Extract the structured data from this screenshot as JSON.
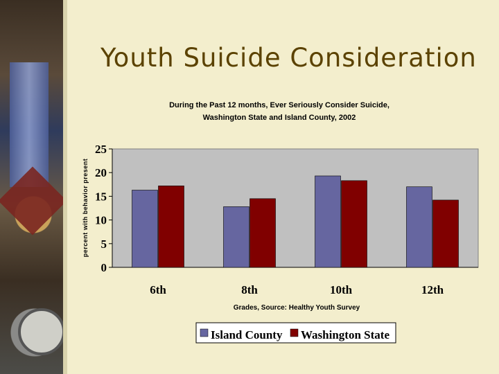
{
  "slide": {
    "title": "Youth Suicide Consideration"
  },
  "chart_data": {
    "type": "bar",
    "title": "During the Past 12 months, Ever Seriously Consider Suicide,",
    "subtitle": "Washington State and Island County, 2002",
    "xlabel": "Grades, Source: Healthy Youth Survey",
    "ylabel": "percent with behavior present",
    "categories": [
      "6th",
      "8th",
      "10th",
      "12th"
    ],
    "ylim": [
      0,
      25
    ],
    "yticks": [
      0,
      5,
      10,
      15,
      20,
      25
    ],
    "grid": false,
    "legend_position": "bottom",
    "series": [
      {
        "name": "Island County",
        "color": "#6666a0",
        "values": [
          16.3,
          12.8,
          19.3,
          17.0
        ]
      },
      {
        "name": "Washington State",
        "color": "#800000",
        "values": [
          17.2,
          14.5,
          18.3,
          14.2
        ]
      }
    ],
    "plot_background": "#c0c0c0"
  }
}
